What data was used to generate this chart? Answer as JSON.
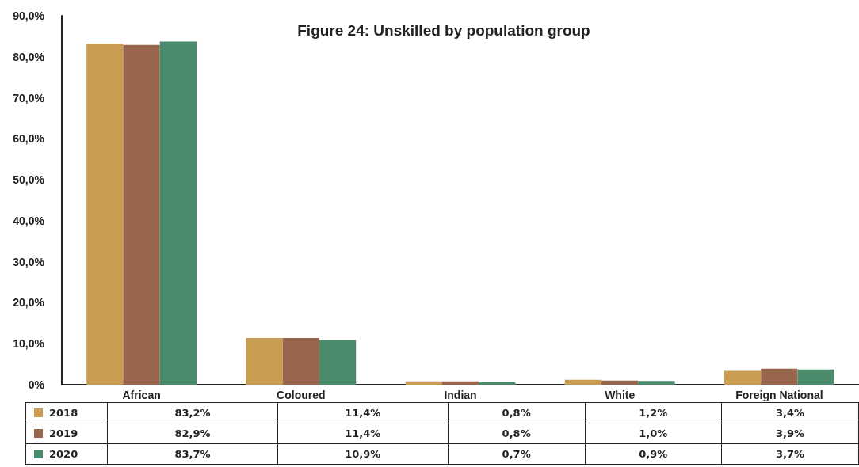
{
  "chart_data": {
    "type": "bar",
    "title": "Figure 24: Unskilled by population group",
    "categories": [
      "African",
      "Coloured",
      "Indian",
      "White",
      "Foreign National"
    ],
    "series": [
      {
        "name": "2018",
        "color": "#c89d52",
        "values": [
          83.2,
          11.4,
          0.8,
          1.2,
          3.4
        ],
        "value_labels": [
          "83,2%",
          "11,4%",
          "0,8%",
          "1,2%",
          "3,4%"
        ]
      },
      {
        "name": "2019",
        "color": "#98654d",
        "values": [
          82.9,
          11.4,
          0.8,
          1.0,
          3.9
        ],
        "value_labels": [
          "82,9%",
          "11,4%",
          "0,8%",
          "1,0%",
          "3,9%"
        ]
      },
      {
        "name": "2020",
        "color": "#4a8b6b",
        "values": [
          83.7,
          10.9,
          0.7,
          0.9,
          3.7
        ],
        "value_labels": [
          "83,7%",
          "10,9%",
          "0,7%",
          "0,9%",
          "3,7%"
        ]
      }
    ],
    "ylim": [
      0,
      90
    ],
    "yticks": [
      {
        "value": 0,
        "label": "0%"
      },
      {
        "value": 10,
        "label": "10,0%"
      },
      {
        "value": 20,
        "label": "20,0%"
      },
      {
        "value": 30,
        "label": "30,0%"
      },
      {
        "value": 40,
        "label": "40,0%"
      },
      {
        "value": 50,
        "label": "50,0%"
      },
      {
        "value": 60,
        "label": "60,0%"
      },
      {
        "value": 70,
        "label": "70,0%"
      },
      {
        "value": 80,
        "label": "80,0%"
      },
      {
        "value": 90,
        "label": "90,0%"
      }
    ],
    "grid": false,
    "legend": "bottom"
  }
}
